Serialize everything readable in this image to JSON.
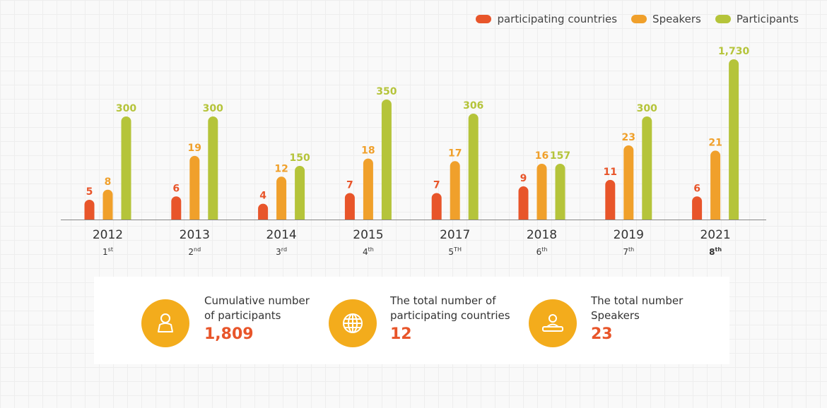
{
  "legend": [
    {
      "label": "participating countries",
      "color": "#e8552a"
    },
    {
      "label": "Speakers",
      "color": "#f0a02b"
    },
    {
      "label": "Participants",
      "color": "#b5c43a"
    }
  ],
  "chart_data": {
    "type": "bar",
    "categories": [
      "2012",
      "2013",
      "2014",
      "2015",
      "2017",
      "2018",
      "2019",
      "2021"
    ],
    "ordinals": [
      {
        "num": "1",
        "suffix": "st"
      },
      {
        "num": "2",
        "suffix": "nd"
      },
      {
        "num": "3",
        "suffix": "rd"
      },
      {
        "num": "4",
        "suffix": "th"
      },
      {
        "num": "5",
        "suffix": "TH"
      },
      {
        "num": "6",
        "suffix": "th"
      },
      {
        "num": "7",
        "suffix": "th"
      },
      {
        "num": "8",
        "suffix": "th"
      }
    ],
    "series": [
      {
        "name": "participating countries",
        "color": "#e8552a",
        "values": [
          5,
          6,
          4,
          7,
          7,
          9,
          11,
          6
        ],
        "labels": [
          "5",
          "6",
          "4",
          "7",
          "7",
          "9",
          "11",
          "6"
        ]
      },
      {
        "name": "Speakers",
        "color": "#f0a02b",
        "values": [
          8,
          19,
          12,
          18,
          17,
          16,
          23,
          21
        ],
        "labels": [
          "8",
          "19",
          "12",
          "18",
          "17",
          "16",
          "23",
          "21"
        ]
      },
      {
        "name": "Participants",
        "color": "#b5c43a",
        "values": [
          300,
          300,
          150,
          350,
          306,
          157,
          300,
          1730
        ],
        "labels": [
          "300",
          "300",
          "150",
          "350",
          "306",
          "157",
          "300",
          "1,730"
        ]
      }
    ]
  },
  "summary": [
    {
      "icon": "person-icon",
      "label_lines": [
        "Cumulative number",
        "of participants"
      ],
      "value": "1,809"
    },
    {
      "icon": "globe-icon",
      "label_lines": [
        "The total number of",
        "participating countries"
      ],
      "value": "12"
    },
    {
      "icon": "speaker-icon",
      "label_lines": [
        "The total number",
        "Speakers"
      ],
      "value": "23"
    }
  ]
}
